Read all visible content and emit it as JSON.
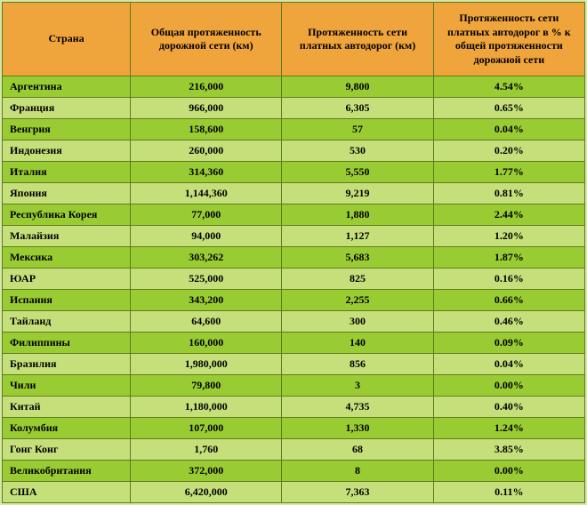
{
  "style": {
    "background": "#d7e8a6",
    "header_bg": "#f0a43c",
    "row_odd": "#99cc33",
    "row_even": "#c5e07a",
    "border_color": "#5e7c1f",
    "header_font_size_pt": 9,
    "cell_font_size_pt": 9,
    "font_family": "Times New Roman"
  },
  "columns": [
    "Страна",
    "Общая протяженность дорожной сети (км)",
    "Протяженность сети платных автодорог (км)",
    "Протяженность сети платных автодорог в % к общей протяженности дорожной сети"
  ],
  "rows": [
    {
      "country": "Аргентина",
      "total": "216,000",
      "toll": "9,800",
      "pct": "4.54%"
    },
    {
      "country": "Франция",
      "total": "966,000",
      "toll": "6,305",
      "pct": "0.65%"
    },
    {
      "country": "Венгрия",
      "total": "158,600",
      "toll": "57",
      "pct": "0.04%"
    },
    {
      "country": "Индонезия",
      "total": "260,000",
      "toll": "530",
      "pct": "0.20%"
    },
    {
      "country": "Италия",
      "total": "314,360",
      "toll": "5,550",
      "pct": "1.77%"
    },
    {
      "country": "Япония",
      "total": "1,144,360",
      "toll": "9,219",
      "pct": "0.81%"
    },
    {
      "country": "Республика Корея",
      "total": "77,000",
      "toll": "1,880",
      "pct": "2.44%"
    },
    {
      "country": "Малайзия",
      "total": "94,000",
      "toll": "1,127",
      "pct": "1.20%"
    },
    {
      "country": "Мексика",
      "total": "303,262",
      "toll": "5,683",
      "pct": "1.87%"
    },
    {
      "country": "ЮАР",
      "total": "525,000",
      "toll": "825",
      "pct": "0.16%"
    },
    {
      "country": "Испания",
      "total": "343,200",
      "toll": "2,255",
      "pct": "0.66%"
    },
    {
      "country": "Тайланд",
      "total": "64,600",
      "toll": "300",
      "pct": "0.46%"
    },
    {
      "country": "Филиппины",
      "total": "160,000",
      "toll": "140",
      "pct": "0.09%"
    },
    {
      "country": "Бразилия",
      "total": "1,980,000",
      "toll": "856",
      "pct": "0.04%"
    },
    {
      "country": "Чили",
      "total": "79,800",
      "toll": "3",
      "pct": "0.00%"
    },
    {
      "country": "Китай",
      "total": "1,180,000",
      "toll": "4,735",
      "pct": "0.40%"
    },
    {
      "country": "Колумбия",
      "total": "107,000",
      "toll": "1,330",
      "pct": "1.24%"
    },
    {
      "country": "Гонг Конг",
      "total": "1,760",
      "toll": "68",
      "pct": "3.85%"
    },
    {
      "country": "Великобритания",
      "total": "372,000",
      "toll": "8",
      "pct": "0.00%"
    },
    {
      "country": "США",
      "total": "6,420,000",
      "toll": "7,363",
      "pct": "0.11%"
    }
  ]
}
